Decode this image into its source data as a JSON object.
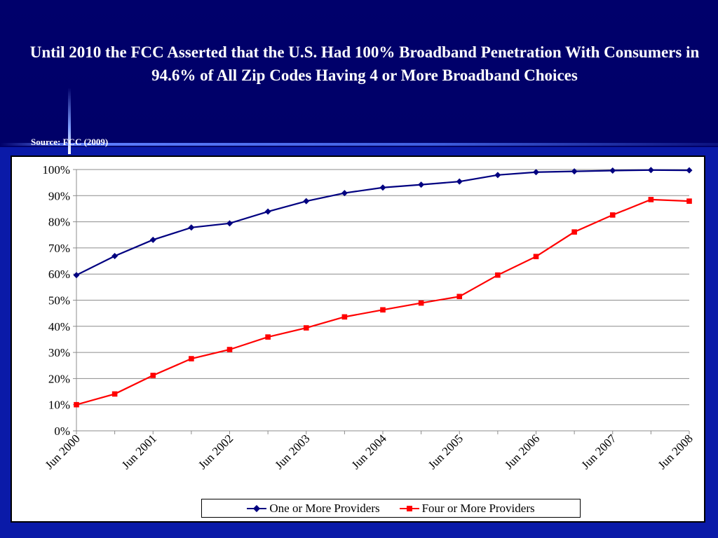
{
  "slide": {
    "title": "Until 2010 the FCC Asserted that the U.S. Had 100% Broadband Penetration With Consumers in 94.6% of All Zip Codes Having 4 or More Broadband Choices",
    "source": "Source: FCC (2009)"
  },
  "colors": {
    "background": "#000066",
    "series_one": "#000080",
    "series_four": "#ff0000"
  },
  "chart_data": {
    "type": "line",
    "title": "",
    "xlabel": "",
    "ylabel": "",
    "ylim": [
      0,
      100
    ],
    "y_ticks": [
      "0%",
      "10%",
      "20%",
      "30%",
      "40%",
      "50%",
      "60%",
      "70%",
      "80%",
      "90%",
      "100%"
    ],
    "x": [
      "Jun 2000",
      "Dec 2000",
      "Jun 2001",
      "Dec 2001",
      "Jun 2002",
      "Dec 2002",
      "Jun 2003",
      "Dec 2003",
      "Jun 2004",
      "Dec 2004",
      "Jun 2005",
      "Dec 2005",
      "Jun 2006",
      "Dec 2006",
      "Jun 2007",
      "Dec 2007",
      "Jun 2008"
    ],
    "x_tick_labels": [
      "Jun 2000",
      "Jun 2001",
      "Jun 2002",
      "Jun 2003",
      "Jun 2004",
      "Jun 2005",
      "Jun 2006",
      "Jun 2007",
      "Jun 2008"
    ],
    "grid": true,
    "legend": "bottom",
    "series": [
      {
        "name": "One or More Providers",
        "marker": "diamond",
        "values": [
          59.6,
          66.9,
          73.1,
          77.8,
          79.4,
          83.9,
          87.9,
          91.0,
          93.1,
          94.2,
          95.4,
          97.9,
          99.0,
          99.3,
          99.6,
          99.8,
          99.7
        ]
      },
      {
        "name": "Four or More Providers",
        "marker": "square",
        "values": [
          10.0,
          14.1,
          21.2,
          27.6,
          31.1,
          35.9,
          39.4,
          43.6,
          46.3,
          48.9,
          51.4,
          59.6,
          66.7,
          76.1,
          82.6,
          88.5,
          87.9
        ]
      }
    ]
  }
}
